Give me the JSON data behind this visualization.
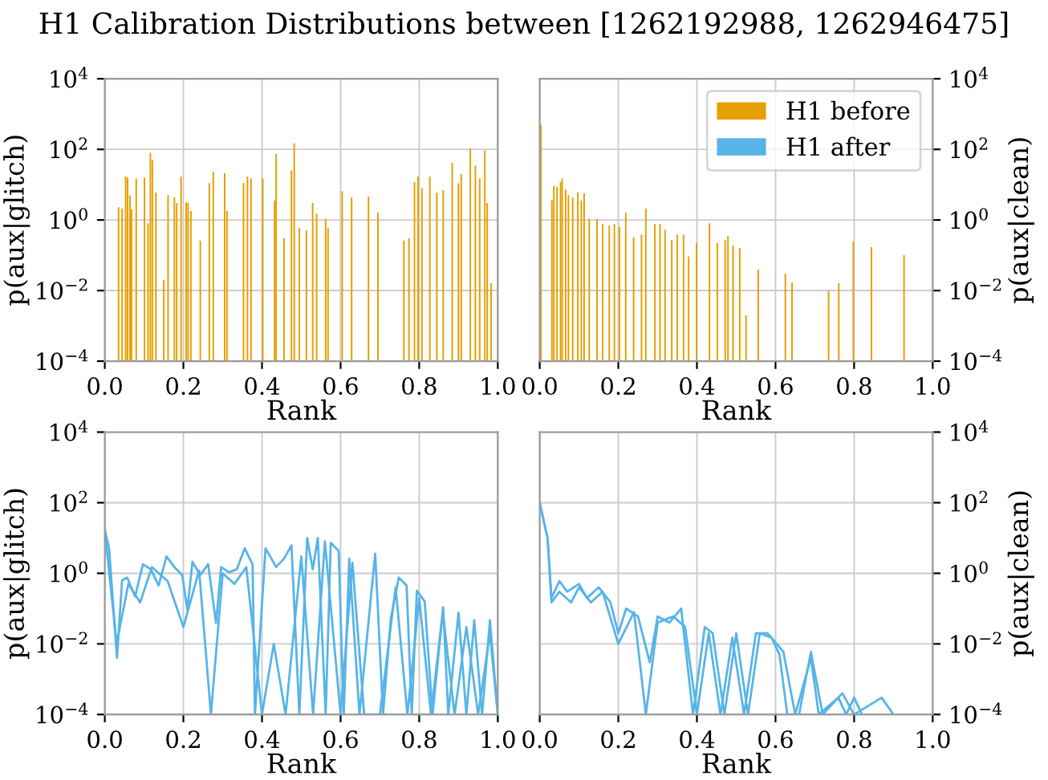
{
  "chart_data": [
    {
      "type": "bar",
      "title": "H1 Calibration Distributions between [1262192988, 1262946475]",
      "xlabel": "Rank",
      "ylabel": "p(aux|glitch)",
      "log": "y",
      "grid": true,
      "xlim": [
        0,
        1
      ],
      "xticks": [
        {
          "value": 0,
          "label": "0.0"
        },
        {
          "value": 0.2,
          "label": "0.2"
        },
        {
          "value": 0.4,
          "label": "0.4"
        },
        {
          "value": 0.6,
          "label": "0.6"
        },
        {
          "value": 0.8,
          "label": "0.8"
        },
        {
          "value": 1,
          "label": "1.0"
        }
      ],
      "ylim": [
        0.0001,
        10000
      ],
      "yticks": [
        {
          "value": 0.0001,
          "label": "10$^{−4}$"
        },
        {
          "value": 0.01,
          "label": "10$^{−2}$"
        },
        {
          "value": 1,
          "label": "10$^{0}$"
        },
        {
          "value": 100,
          "label": "10$^{2}$"
        },
        {
          "value": 10000,
          "label": "10$^{4}$"
        }
      ],
      "series": [
        {
          "name": "H1 before",
          "color": "#e69f00",
          "x": [
            0.035,
            0.044,
            0.053,
            0.058,
            0.064,
            0.068,
            0.08,
            0.101,
            0.11,
            0.116,
            0.121,
            0.13,
            0.15,
            0.161,
            0.177,
            0.183,
            0.194,
            0.207,
            0.212,
            0.219,
            0.243,
            0.266,
            0.276,
            0.305,
            0.311,
            0.353,
            0.363,
            0.372,
            0.402,
            0.432,
            0.436,
            0.456,
            0.475,
            0.482,
            0.495,
            0.513,
            0.529,
            0.539,
            0.562,
            0.568,
            0.604,
            0.628,
            0.671,
            0.695,
            0.761,
            0.774,
            0.788,
            0.797,
            0.807,
            0.827,
            0.845,
            0.861,
            0.884,
            0.9,
            0.907,
            0.93,
            0.943,
            0.954,
            0.967,
            0.973,
            0.983
          ],
          "values": [
            2.3,
            2.1,
            17,
            16,
            5,
            2,
            15,
            16,
            0.8,
            80,
            50,
            6,
            0.02,
            5,
            4.4,
            3,
            17,
            3.2,
            3,
            1.8,
            0.26,
            11,
            23,
            21,
            1.8,
            11,
            17,
            15,
            15,
            3.6,
            75,
            0.3,
            25,
            150,
            0.6,
            0.5,
            3,
            1.5,
            1.1,
            0.6,
            6.5,
            4.4,
            4.6,
            1.6,
            0.26,
            0.3,
            12,
            17,
            8,
            17,
            6,
            7,
            42,
            11,
            20,
            107,
            35,
            15,
            93,
            3,
            0.016
          ]
        }
      ]
    },
    {
      "type": "bar",
      "xlabel": "Rank",
      "y2label": "p(aux|clean)",
      "log": "y2",
      "grid": true,
      "legend": "top right",
      "xlim": [
        0,
        1
      ],
      "xticks": [
        {
          "value": 0,
          "label": "0.0"
        },
        {
          "value": 0.2,
          "label": "0.2"
        },
        {
          "value": 0.4,
          "label": "0.4"
        },
        {
          "value": 0.6,
          "label": "0.6"
        },
        {
          "value": 0.8,
          "label": "0.8"
        },
        {
          "value": 1,
          "label": "1.0"
        }
      ],
      "y2lim": [
        0.0001,
        10000
      ],
      "y2ticks": [
        {
          "value": 0.0001,
          "label": "10$^{−4}$"
        },
        {
          "value": 0.01,
          "label": "10$^{−2}$"
        },
        {
          "value": 1,
          "label": "10$^{0}$"
        },
        {
          "value": 100,
          "label": "10$^{2}$"
        },
        {
          "value": 10000,
          "label": "10$^{4}$"
        }
      ],
      "series": [
        {
          "name": "H1 before",
          "color": "#e69f00",
          "axis": "y2",
          "x": [
            0.003,
            0.031,
            0.036,
            0.044,
            0.053,
            0.057,
            0.066,
            0.073,
            0.084,
            0.097,
            0.106,
            0.113,
            0.126,
            0.146,
            0.16,
            0.177,
            0.19,
            0.203,
            0.219,
            0.239,
            0.259,
            0.27,
            0.293,
            0.306,
            0.319,
            0.336,
            0.35,
            0.366,
            0.379,
            0.399,
            0.432,
            0.452,
            0.472,
            0.479,
            0.492,
            0.509,
            0.525,
            0.556,
            0.625,
            0.642,
            0.735,
            0.761,
            0.798,
            0.844,
            0.927
          ],
          "values": [
            500,
            3.6,
            9.3,
            8.7,
            12,
            15,
            7.3,
            5.1,
            4.3,
            6.1,
            3.6,
            5.7,
            1.07,
            1.07,
            0.76,
            0.7,
            0.76,
            0.63,
            1.6,
            0.32,
            0.38,
            2.1,
            0.76,
            0.76,
            0.53,
            0.27,
            0.38,
            0.38,
            0.093,
            0.22,
            0.81,
            0.22,
            0.27,
            0.35,
            0.19,
            0.16,
            0.002,
            0.039,
            0.03,
            0.017,
            0.0096,
            0.016,
            0.24,
            0.17,
            0.1
          ]
        }
      ]
    },
    {
      "type": "line",
      "xlabel": "Rank",
      "ylabel": "p(aux|glitch)",
      "log": "y",
      "grid": true,
      "xlim": [
        0,
        1
      ],
      "xticks": [
        {
          "value": 0,
          "label": "0.0"
        },
        {
          "value": 0.2,
          "label": "0.2"
        },
        {
          "value": 0.4,
          "label": "0.4"
        },
        {
          "value": 0.6,
          "label": "0.6"
        },
        {
          "value": 0.8,
          "label": "0.8"
        },
        {
          "value": 1,
          "label": "1.0"
        }
      ],
      "ylim": [
        0.0001,
        10000
      ],
      "yticks": [
        {
          "value": 0.0001,
          "label": "10$^{−4}$"
        },
        {
          "value": 0.01,
          "label": "10$^{−2}$"
        },
        {
          "value": 1,
          "label": "10$^{0}$"
        },
        {
          "value": 100,
          "label": "10$^{2}$"
        },
        {
          "value": 10000,
          "label": "10$^{4}$"
        }
      ],
      "series": [
        {
          "name": "H1 after",
          "color": "#56b4e9",
          "x": [
            0,
            0.011,
            0.031,
            0.044,
            0.057,
            0.077,
            0.097,
            0.117,
            0.137,
            0.157,
            0.177,
            0.197,
            0.21,
            0.223,
            0.243,
            0.263,
            0.283,
            0.296,
            0.316,
            0.336,
            0.356,
            0.376,
            0.382,
            0.409,
            0.436,
            0.456,
            0.475,
            0.495,
            0.515,
            0.529,
            0.542,
            0.562,
            0.575,
            0.595,
            0.608,
            0.622,
            0.648,
            0.688,
            0.708,
            0.728,
            0.748,
            0.768,
            0.781,
            0.794,
            0.814,
            0.834,
            0.861,
            0.874,
            0.9,
            0.92,
            0.94,
            0.96,
            0.98,
            1.0
          ],
          "values": [
            17,
            5.1,
            0.004,
            0.63,
            0.76,
            0.22,
            1.8,
            1.3,
            0.45,
            3,
            1.5,
            0.9,
            0.093,
            2.1,
            0.9,
            1.8,
            0.039,
            1.5,
            1.07,
            1.3,
            5.1,
            1.8,
            0.0001,
            5.1,
            1.5,
            2.6,
            6.2,
            0.0001,
            10,
            1.3,
            10,
            0.0001,
            7.3,
            4.3,
            0.0001,
            2.6,
            0.0001,
            3.6,
            0.0001,
            0.055,
            0.76,
            0.45,
            0.0001,
            0.32,
            0.16,
            0.0001,
            0.11,
            0.0001,
            0.077,
            0.0001,
            0.047,
            0.0001,
            0.047,
            0.0001
          ]
        },
        {
          "color": "#56b4e9",
          "x": [
            0,
            0.03,
            0.06,
            0.09,
            0.12,
            0.16,
            0.2,
            0.24,
            0.27,
            0.3,
            0.33,
            0.36,
            0.4,
            0.43,
            0.46,
            0.5,
            0.53,
            0.56,
            0.6,
            0.63,
            0.66,
            0.7,
            0.74,
            0.77,
            0.8,
            0.83,
            0.86,
            0.89,
            0.92,
            0.95,
            0.98,
            1.0
          ],
          "values": [
            17,
            0.01,
            0.5,
            0.15,
            1.5,
            0.6,
            0.03,
            1.2,
            0.0001,
            1,
            0.5,
            1.5,
            0.0001,
            0.01,
            0.0001,
            3,
            0.0001,
            8,
            0.0001,
            2,
            0.0001,
            0.0001,
            0.4,
            0.0001,
            0.2,
            0.0001,
            0.08,
            0.0001,
            0.03,
            0.0001,
            0.02,
            0.0001
          ]
        }
      ]
    },
    {
      "type": "line",
      "xlabel": "Rank",
      "y2label": "p(aux|clean)",
      "log": "y2",
      "grid": true,
      "xlim": [
        0,
        1
      ],
      "xticks": [
        {
          "value": 0,
          "label": "0.0"
        },
        {
          "value": 0.2,
          "label": "0.2"
        },
        {
          "value": 0.4,
          "label": "0.4"
        },
        {
          "value": 0.6,
          "label": "0.6"
        },
        {
          "value": 0.8,
          "label": "0.8"
        },
        {
          "value": 1,
          "label": "1.0"
        }
      ],
      "y2lim": [
        0.0001,
        10000
      ],
      "y2ticks": [
        {
          "value": 0.0001,
          "label": "10$^{−4}$"
        },
        {
          "value": 0.01,
          "label": "10$^{−2}$"
        },
        {
          "value": 1,
          "label": "10$^{0}$"
        },
        {
          "value": 100,
          "label": "10$^{2}$"
        },
        {
          "value": 10000,
          "label": "10$^{4}$"
        }
      ],
      "series": [
        {
          "color": "#56b4e9",
          "axis": "y2",
          "x": [
            0,
            0.02,
            0.03,
            0.05,
            0.07,
            0.1,
            0.12,
            0.15,
            0.18,
            0.2,
            0.22,
            0.25,
            0.28,
            0.3,
            0.33,
            0.36,
            0.39,
            0.42,
            0.44,
            0.47,
            0.5,
            0.53,
            0.56,
            0.59,
            0.61,
            0.63,
            0.66,
            0.69,
            0.72,
            0.77,
            0.8,
            0.87,
            0.9
          ],
          "values": [
            100,
            10,
            0.2,
            0.6,
            0.3,
            0.5,
            0.2,
            0.4,
            0.15,
            0.02,
            0.1,
            0.06,
            0.003,
            0.06,
            0.04,
            0.1,
            0.0001,
            0.03,
            0.02,
            0.0001,
            0.02,
            0.0001,
            0.02,
            0.015,
            0.005,
            0.0001,
            0.0001,
            0.006,
            0.0001,
            0.0004,
            0.0001,
            0.0003,
            0.0001
          ]
        },
        {
          "color": "#56b4e9",
          "axis": "y2",
          "x": [
            0,
            0.02,
            0.03,
            0.05,
            0.08,
            0.1,
            0.13,
            0.16,
            0.2,
            0.24,
            0.27,
            0.3,
            0.34,
            0.37,
            0.4,
            0.43,
            0.46,
            0.49,
            0.52,
            0.55,
            0.58,
            0.62,
            0.65,
            0.69,
            0.71,
            0.76,
            0.78,
            0.8,
            0.82
          ],
          "values": [
            100,
            10,
            0.15,
            0.3,
            0.15,
            0.4,
            0.15,
            0.3,
            0.01,
            0.08,
            0.0001,
            0.04,
            0.06,
            0.03,
            0.0001,
            0.02,
            0.0001,
            0.015,
            0.0001,
            0.02,
            0.02,
            0.006,
            0.0001,
            0.004,
            0.0001,
            0.0003,
            0.0001,
            0.0003,
            0.0001
          ]
        }
      ]
    }
  ]
}
